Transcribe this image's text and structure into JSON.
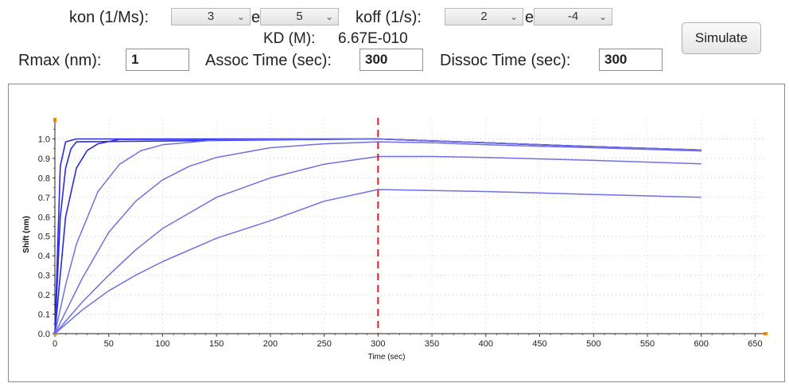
{
  "controls": {
    "kon_label": "kon (1/Ms):",
    "kon_mantissa": "3",
    "kon_exponent": "5",
    "e_sep": "e",
    "koff_label": "koff (1/s):",
    "koff_mantissa": "2",
    "koff_exponent": "-4",
    "kd_label": "KD (M):",
    "kd_value": "6.67E-010",
    "rmax_label": "Rmax (nm):",
    "rmax_value": "1",
    "assoc_label": "Assoc Time (sec):",
    "assoc_value": "300",
    "dissoc_label": "Dissoc Time (sec):",
    "dissoc_value": "300",
    "simulate_label": "Simulate"
  },
  "colors": {
    "curve": "#6f6fe6",
    "curve_dark": "#2a2ae0",
    "marker": "#dd1c1c",
    "axis_end": "#f08a00"
  },
  "chart_data": {
    "type": "line",
    "xlabel": "Time (sec)",
    "ylabel": "Shift (nm)",
    "xlim": [
      0,
      660
    ],
    "ylim": [
      0,
      1.1
    ],
    "x_ticks": [
      "0",
      "50",
      "100",
      "150",
      "200",
      "250",
      "300",
      "350",
      "400",
      "450",
      "500",
      "550",
      "600",
      "650"
    ],
    "y_ticks": [
      "0.0",
      "0.1",
      "0.2",
      "0.3",
      "0.4",
      "0.5",
      "0.6",
      "0.7",
      "0.8",
      "0.9",
      "1.0"
    ],
    "grid": true,
    "assoc_end_marker_x": 300,
    "series": [
      {
        "x": [
          0,
          5,
          10,
          20,
          300,
          350,
          400,
          500,
          600
        ],
        "y": [
          0,
          0.86,
          0.985,
          1.0,
          1.0,
          0.99,
          0.98,
          0.96,
          0.943
        ]
      },
      {
        "x": [
          0,
          5,
          10,
          15,
          20,
          300,
          350,
          400,
          500,
          600
        ],
        "y": [
          0,
          0.6,
          0.85,
          0.95,
          0.985,
          1.0,
          0.99,
          0.98,
          0.96,
          0.943
        ]
      },
      {
        "x": [
          0,
          10,
          20,
          30,
          40,
          60,
          300,
          350,
          400,
          500,
          600
        ],
        "y": [
          0,
          0.6,
          0.85,
          0.94,
          0.975,
          0.998,
          1.0,
          0.99,
          0.98,
          0.96,
          0.943
        ]
      },
      {
        "x": [
          0,
          10,
          20,
          40,
          60,
          80,
          100,
          150,
          300,
          350,
          400,
          500,
          600
        ],
        "y": [
          0,
          0.25,
          0.46,
          0.73,
          0.87,
          0.94,
          0.97,
          0.995,
          1.0,
          0.99,
          0.98,
          0.96,
          0.943
        ]
      },
      {
        "x": [
          0,
          25,
          50,
          75,
          100,
          125,
          150,
          200,
          250,
          300,
          350,
          400,
          500,
          600
        ],
        "y": [
          0,
          0.28,
          0.52,
          0.68,
          0.79,
          0.86,
          0.905,
          0.955,
          0.975,
          0.985,
          0.98,
          0.97,
          0.955,
          0.938
        ]
      },
      {
        "x": [
          0,
          25,
          50,
          75,
          100,
          150,
          200,
          250,
          300,
          350,
          400,
          500,
          600
        ],
        "y": [
          0,
          0.16,
          0.3,
          0.43,
          0.54,
          0.7,
          0.8,
          0.87,
          0.91,
          0.91,
          0.905,
          0.89,
          0.872
        ]
      },
      {
        "x": [
          0,
          25,
          50,
          75,
          100,
          150,
          200,
          250,
          300,
          350,
          400,
          500,
          600
        ],
        "y": [
          0,
          0.12,
          0.22,
          0.3,
          0.37,
          0.49,
          0.58,
          0.68,
          0.74,
          0.735,
          0.73,
          0.715,
          0.7
        ]
      }
    ]
  }
}
